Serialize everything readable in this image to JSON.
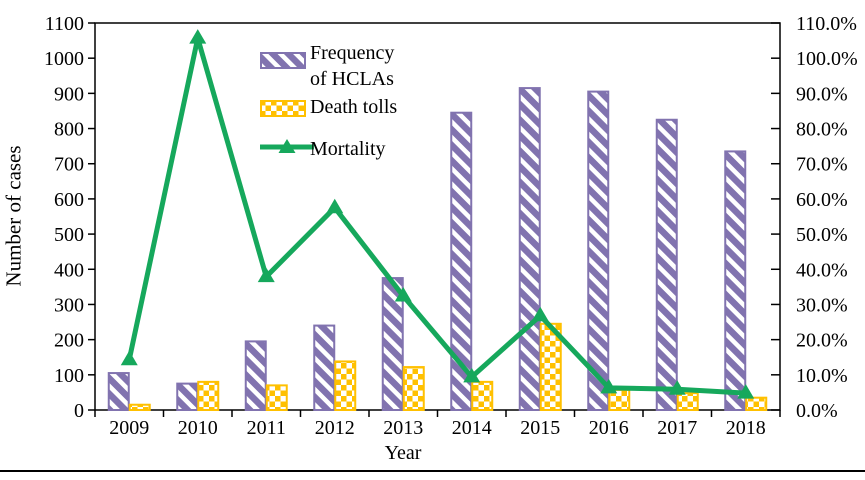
{
  "chart_data": {
    "type": "bar+line",
    "title": "",
    "categories": [
      "2009",
      "2010",
      "2011",
      "2012",
      "2013",
      "2014",
      "2015",
      "2016",
      "2017",
      "2018"
    ],
    "series": [
      {
        "name": "Frequency of HCLAs",
        "type": "bar",
        "axis": "left",
        "values": [
          105,
          75,
          195,
          240,
          375,
          845,
          915,
          905,
          825,
          735
        ],
        "color": "#8173AF",
        "pattern": "wide-downward-diagonal-hatch"
      },
      {
        "name": "Death tolls",
        "type": "bar",
        "axis": "left",
        "values": [
          15,
          80,
          70,
          138,
          122,
          80,
          245,
          57,
          48,
          35
        ],
        "color": "#FFC000",
        "pattern": "checkerboard"
      },
      {
        "name": "Mortality",
        "type": "line",
        "axis": "right",
        "values": [
          14.3,
          105.7,
          37.9,
          57.5,
          32.4,
          9.4,
          26.8,
          6.3,
          5.9,
          4.8
        ],
        "unit": "%",
        "color": "#16A85C",
        "marker": "triangle-up"
      }
    ],
    "left_axis": {
      "title": "Number of cases",
      "min": 0,
      "max": 1100,
      "tick_step": 100,
      "tick_labels": [
        "0",
        "100",
        "200",
        "300",
        "400",
        "500",
        "600",
        "700",
        "800",
        "900",
        "1000",
        "1100"
      ]
    },
    "right_axis": {
      "title": "",
      "min": 0,
      "max": 110,
      "tick_step": 10,
      "unit": "%",
      "tick_labels": [
        "0.0%",
        "10.0%",
        "20.0%",
        "30.0%",
        "40.0%",
        "50.0%",
        "60.0%",
        "70.0%",
        "80.0%",
        "90.0%",
        "100.0%",
        "110.0%"
      ]
    },
    "x_axis": {
      "title": "Year"
    },
    "grid": false,
    "legend_position": "inside-top-left",
    "legend": {
      "items": [
        {
          "label": "Frequency of HCLAs",
          "line1": "Frequency",
          "line2": "of HCLAs",
          "swatch": "purple-hatched-bar"
        },
        {
          "label": "Death tolls",
          "swatch": "gold-checkered-bar"
        },
        {
          "label": "Mortality",
          "swatch": "green-line-with-triangle-marker"
        }
      ]
    },
    "colors": {
      "frame": "#000000",
      "text": "#000000",
      "background": "#ffffff"
    }
  }
}
